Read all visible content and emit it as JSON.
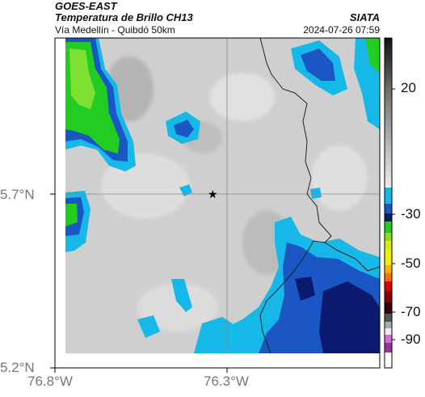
{
  "header": {
    "satellite": "GOES-EAST",
    "product": "Temperatura de Brillo CH13",
    "region": "Vía Medellín - Quibdó 50km",
    "org": "SIATA",
    "datetime": "2024-07-26 07:59"
  },
  "axes": {
    "y_ticks": [
      {
        "label": "5.7°N",
        "value": 5.7
      },
      {
        "label": "5.2°N",
        "value": 5.2
      }
    ],
    "x_ticks": [
      {
        "label": "76.8°W",
        "value": -76.8
      },
      {
        "label": "76.3°W",
        "value": -76.3
      }
    ]
  },
  "colorbar": {
    "ticks": [
      {
        "label": "20",
        "value": 20
      },
      {
        "label": "-30",
        "value": -30
      },
      {
        "label": "-50",
        "value": -50
      },
      {
        "label": "-70",
        "value": -70
      },
      {
        "label": "-90",
        "value": -90
      }
    ],
    "range": [
      -95,
      40
    ],
    "colors": {
      "warm_top": "#111111",
      "warm_mid": "#8a8a8a",
      "warm_low": "#e0e0e0",
      "cyan": "#16b8e8",
      "blue": "#1a56c4",
      "navy": "#0b1a6e",
      "green": "#22cc22",
      "lime": "#aaf000",
      "yellow": "#f0f000",
      "orange": "#ff9000",
      "red": "#e00000",
      "darkred": "#600000",
      "magenta": "#c040c0"
    }
  },
  "map": {
    "marker": "star-icon",
    "gridlines": true
  }
}
